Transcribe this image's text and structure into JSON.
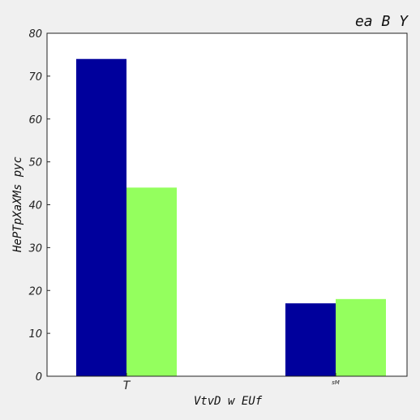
{
  "chart_data": {
    "type": "bar",
    "title": "ea B Y",
    "xlabel": "VtvD w EUf",
    "ylabel": "HePTpXaXMs pyc",
    "categories": [
      "T",
      "sM"
    ],
    "series": [
      {
        "values": [
          74,
          17
        ],
        "color": "#00009c"
      },
      {
        "values": [
          44,
          18
        ],
        "color": "#94ff5e"
      }
    ],
    "ylim": [
      0,
      80
    ],
    "yticks": [
      0,
      10,
      20,
      30,
      40,
      50,
      60,
      70,
      80
    ],
    "grid": false
  }
}
